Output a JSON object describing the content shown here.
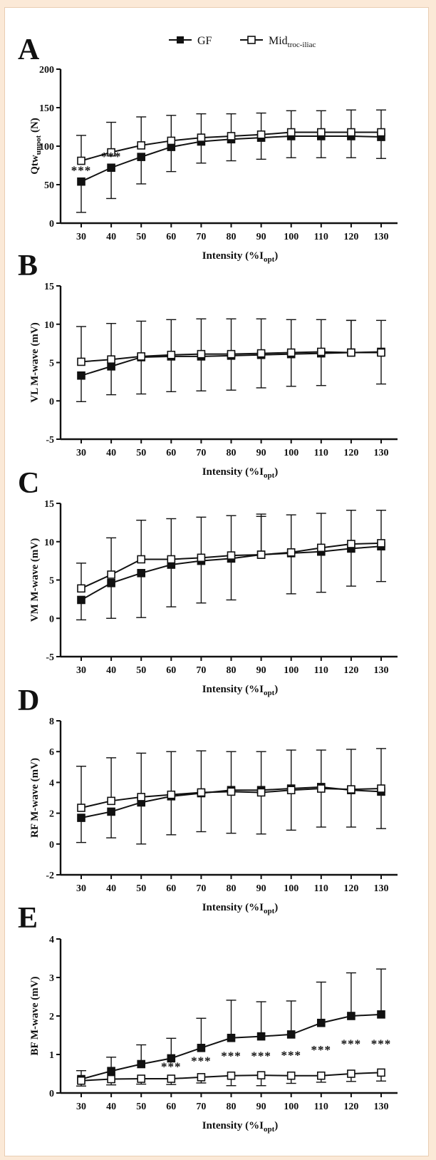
{
  "legend": {
    "gf_label": "GF",
    "mid_label": "Mid",
    "mid_sub": "troc-iliac"
  },
  "chart_data": [
    {
      "type": "line",
      "panel": "A",
      "ylabel": "Qtw",
      "ylabel_sub": "unpot",
      "ylabel_suffix": " (N)",
      "xlabel": "Intensity (%I",
      "xlabel_sub": "opt",
      "xlabel_suffix": ")",
      "x": [
        30,
        40,
        50,
        60,
        70,
        80,
        90,
        100,
        110,
        120,
        130
      ],
      "ylim": [
        0,
        200
      ],
      "yticks": [
        0,
        50,
        100,
        150,
        200
      ],
      "series": [
        {
          "name": "GF",
          "marker": "filled-square",
          "values": [
            54,
            72,
            86,
            99,
            106,
            109,
            111,
            113,
            113,
            113,
            112
          ],
          "err": [
            40,
            40,
            35,
            32,
            28,
            28,
            28,
            28,
            28,
            28,
            28
          ]
        },
        {
          "name": "Mid troc-iliac",
          "marker": "open-square",
          "values": [
            81,
            92,
            101,
            107,
            111,
            113,
            115,
            118,
            118,
            118,
            118
          ],
          "err": [
            33,
            39,
            37,
            33,
            31,
            29,
            28,
            28,
            28,
            29,
            29
          ]
        }
      ],
      "annotations": [
        {
          "x": 30,
          "text": "***"
        },
        {
          "x": 40,
          "text": "***"
        }
      ]
    },
    {
      "type": "line",
      "panel": "B",
      "ylabel": "VL M-wave (mV)",
      "xlabel": "Intensity (%I",
      "xlabel_sub": "opt",
      "xlabel_suffix": ")",
      "x": [
        30,
        40,
        50,
        60,
        70,
        80,
        90,
        100,
        110,
        120,
        130
      ],
      "ylim": [
        -5,
        15
      ],
      "yticks": [
        -5,
        0,
        5,
        10,
        15
      ],
      "series": [
        {
          "name": "GF",
          "marker": "filled-square",
          "values": [
            3.3,
            4.5,
            5.7,
            5.8,
            5.8,
            5.9,
            6.0,
            6.1,
            6.2,
            6.3,
            6.4
          ],
          "err": [
            3.4,
            3.7,
            4.8,
            4.6,
            4.5,
            4.5,
            4.3,
            4.2,
            4.2,
            4.2,
            4.1
          ]
        },
        {
          "name": "Mid troc-iliac",
          "marker": "open-square",
          "values": [
            5.1,
            5.4,
            5.8,
            6.0,
            6.1,
            6.1,
            6.2,
            6.3,
            6.4,
            6.3,
            6.3
          ],
          "err": [
            4.6,
            4.7,
            4.6,
            4.6,
            4.6,
            4.6,
            4.5,
            4.3,
            4.2,
            4.2,
            4.1
          ]
        }
      ],
      "annotations": []
    },
    {
      "type": "line",
      "panel": "C",
      "ylabel": "VM M-wave (mV)",
      "xlabel": "Intensity (%I",
      "xlabel_sub": "opt",
      "xlabel_suffix": ")",
      "x": [
        30,
        40,
        50,
        60,
        70,
        80,
        90,
        100,
        110,
        120,
        130
      ],
      "ylim": [
        -5,
        15
      ],
      "yticks": [
        -5,
        0,
        5,
        10,
        15
      ],
      "series": [
        {
          "name": "GF",
          "marker": "filled-square",
          "values": [
            2.4,
            4.6,
            5.9,
            7.0,
            7.5,
            7.8,
            8.3,
            8.5,
            8.7,
            9.1,
            9.4
          ],
          "err": [
            2.6,
            4.6,
            5.8,
            5.5,
            5.5,
            5.4,
            5.3,
            5.3,
            5.3,
            4.9,
            4.6
          ]
        },
        {
          "name": "Mid troc-iliac",
          "marker": "open-square",
          "values": [
            3.9,
            5.7,
            7.7,
            7.7,
            7.9,
            8.2,
            8.3,
            8.6,
            9.2,
            9.7,
            9.8
          ],
          "err": [
            3.3,
            4.8,
            5.1,
            5.3,
            5.3,
            5.2,
            5.0,
            4.9,
            4.5,
            4.4,
            4.3
          ]
        }
      ],
      "annotations": []
    },
    {
      "type": "line",
      "panel": "D",
      "ylabel": "RF M-wave (mV)",
      "xlabel": "Intensity (%I",
      "xlabel_sub": "opt",
      "xlabel_suffix": ")",
      "x": [
        30,
        40,
        50,
        60,
        70,
        80,
        90,
        100,
        110,
        120,
        130
      ],
      "ylim": [
        -2,
        8
      ],
      "yticks": [
        -2,
        0,
        2,
        4,
        6,
        8
      ],
      "series": [
        {
          "name": "GF",
          "marker": "filled-square",
          "values": [
            1.7,
            2.1,
            2.7,
            3.1,
            3.3,
            3.5,
            3.5,
            3.6,
            3.7,
            3.5,
            3.4
          ],
          "err": [
            1.6,
            1.7,
            2.7,
            2.5,
            2.5,
            2.5,
            2.5,
            2.5,
            2.4,
            2.4,
            2.4
          ]
        },
        {
          "name": "Mid troc-iliac",
          "marker": "open-square",
          "values": [
            2.35,
            2.8,
            3.05,
            3.2,
            3.35,
            3.4,
            3.35,
            3.5,
            3.6,
            3.55,
            3.6
          ],
          "err": [
            2.7,
            2.8,
            2.85,
            2.8,
            2.7,
            2.7,
            2.7,
            2.6,
            2.5,
            2.6,
            2.6
          ]
        }
      ],
      "annotations": []
    },
    {
      "type": "line",
      "panel": "E",
      "ylabel": "BF M-wave (mV)",
      "xlabel": "Intensity (%I",
      "xlabel_sub": "opt",
      "xlabel_suffix": ")",
      "x": [
        30,
        40,
        50,
        60,
        70,
        80,
        90,
        100,
        110,
        120,
        130
      ],
      "ylim": [
        0,
        4
      ],
      "yticks": [
        0,
        1,
        2,
        3,
        4
      ],
      "series": [
        {
          "name": "GF",
          "marker": "filled-square",
          "values": [
            0.36,
            0.57,
            0.75,
            0.9,
            1.17,
            1.43,
            1.47,
            1.52,
            1.82,
            2.0,
            2.04
          ],
          "err": [
            0.22,
            0.36,
            0.5,
            0.52,
            0.77,
            0.98,
            0.9,
            0.87,
            1.06,
            1.12,
            1.18
          ]
        },
        {
          "name": "Mid troc-iliac",
          "marker": "open-square",
          "values": [
            0.32,
            0.36,
            0.37,
            0.37,
            0.41,
            0.45,
            0.46,
            0.45,
            0.45,
            0.5,
            0.53
          ],
          "err": [
            0.14,
            0.15,
            0.14,
            0.15,
            0.15,
            0.26,
            0.27,
            0.2,
            0.17,
            0.2,
            0.22
          ]
        }
      ],
      "annotations": [
        {
          "x": 60,
          "text": "***"
        },
        {
          "x": 70,
          "text": "***"
        },
        {
          "x": 80,
          "text": "***"
        },
        {
          "x": 90,
          "text": "***"
        },
        {
          "x": 100,
          "text": "***"
        },
        {
          "x": 110,
          "text": "***"
        },
        {
          "x": 120,
          "text": "***"
        },
        {
          "x": 130,
          "text": "***"
        }
      ]
    }
  ]
}
